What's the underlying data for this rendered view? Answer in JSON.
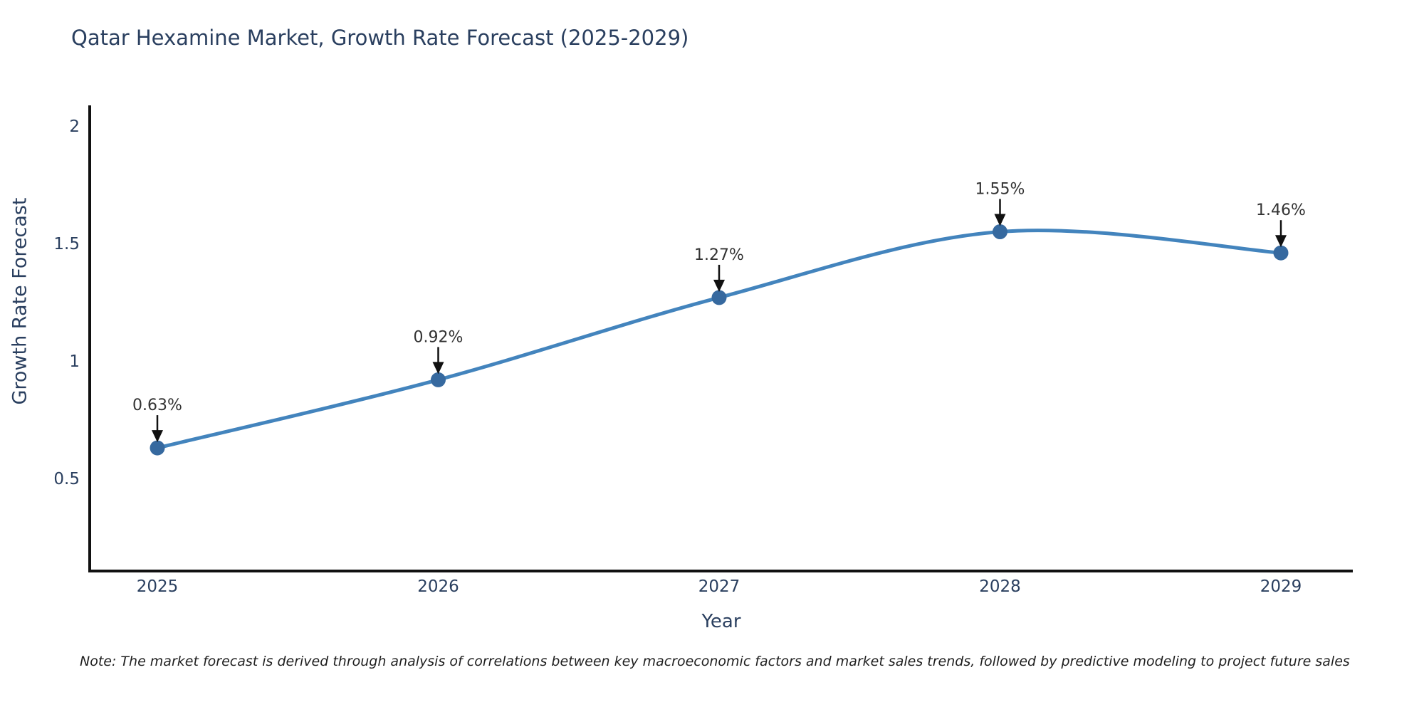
{
  "chart": {
    "title": "Qatar Hexamine Market, Growth Rate Forecast (2025-2029)",
    "xlabel": "Year",
    "ylabel": "Growth Rate Forecast",
    "note": "Note: The market forecast is derived through analysis of correlations between key macroeconomic factors and market sales trends, followed by predictive modeling to project future sales",
    "colors": {
      "line": "#4384bd",
      "marker": "#36699f",
      "axis_line": "#111111",
      "text": "#2a3f5f",
      "annotation_text": "#333333",
      "arrow": "#111111",
      "background": "#ffffff"
    }
  },
  "chart_data": {
    "type": "line",
    "title": "Qatar Hexamine Market, Growth Rate Forecast (2025-2029)",
    "xlabel": "Year",
    "ylabel": "Growth Rate Forecast",
    "x": [
      2025,
      2026,
      2027,
      2028,
      2029
    ],
    "values": [
      0.63,
      0.92,
      1.27,
      1.55,
      1.46
    ],
    "point_labels": [
      "0.63%",
      "0.92%",
      "1.27%",
      "1.55%",
      "1.46%"
    ],
    "xtick_labels": [
      "2025",
      "2026",
      "2027",
      "2028",
      "2029"
    ],
    "ytick_values": [
      0.5,
      1,
      1.5,
      2
    ],
    "ytick_labels": [
      "0.5",
      "1",
      "1.5",
      "2"
    ],
    "ylim": [
      0.1,
      2.08
    ],
    "grid": false,
    "legend": false,
    "line_shape": "spline",
    "markers": true,
    "annotations": "value labels with down arrows above each point"
  }
}
